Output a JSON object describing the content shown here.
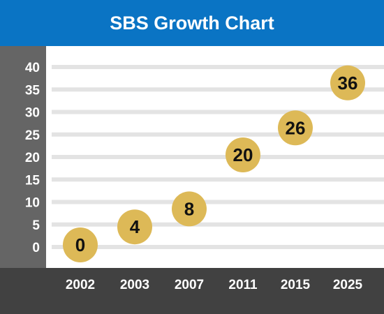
{
  "title": "SBS Growth Chart",
  "colors": {
    "title_bar": "#0a74c4",
    "y_axis_panel": "#656565",
    "x_axis_panel": "#414141",
    "marker": "#ddb957",
    "gridline": "#e3e3e3"
  },
  "chart_data": {
    "type": "scatter",
    "title": "SBS Growth Chart",
    "xlabel": "",
    "ylabel": "",
    "categories": [
      "2002",
      "2003",
      "2007",
      "2011",
      "2015",
      "2025"
    ],
    "values": [
      0,
      4,
      8,
      20,
      26,
      36
    ],
    "data_labels": [
      "0",
      "4",
      "8",
      "20",
      "26",
      "36"
    ],
    "y_ticks": [
      "0",
      "5",
      "10",
      "15",
      "20",
      "25",
      "30",
      "35",
      "40"
    ],
    "ylim": [
      0,
      40
    ],
    "grid": true,
    "legend": "none"
  }
}
